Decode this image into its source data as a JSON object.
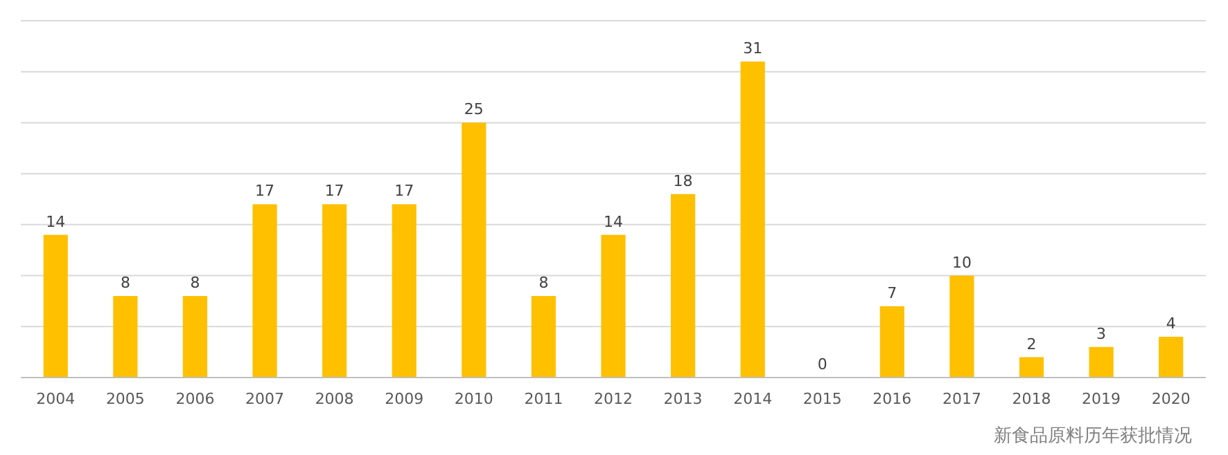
{
  "chart_data": {
    "type": "bar",
    "categories": [
      "2004",
      "2005",
      "2006",
      "2007",
      "2008",
      "2009",
      "2010",
      "2011",
      "2012",
      "2013",
      "2014",
      "2015",
      "2016",
      "2017",
      "2018",
      "2019",
      "2020"
    ],
    "values": [
      14,
      8,
      8,
      17,
      17,
      17,
      25,
      8,
      14,
      18,
      31,
      0,
      7,
      10,
      2,
      3,
      4
    ],
    "color": "#ffc000",
    "data_labels": true,
    "ylim": [
      0,
      35
    ],
    "yticks": [
      {
        "value": 0,
        "label": null
      },
      {
        "value": 5,
        "label": null
      },
      {
        "value": 10,
        "label": null
      },
      {
        "value": 15,
        "label": null
      },
      {
        "value": 20,
        "label": null
      },
      {
        "value": 25,
        "label": null
      },
      {
        "value": 30,
        "label": null
      },
      {
        "value": 35,
        "label": null
      }
    ],
    "grid": "y",
    "tick_labels": "x",
    "annotations": [
      "新食品原料历年获批情况"
    ]
  }
}
